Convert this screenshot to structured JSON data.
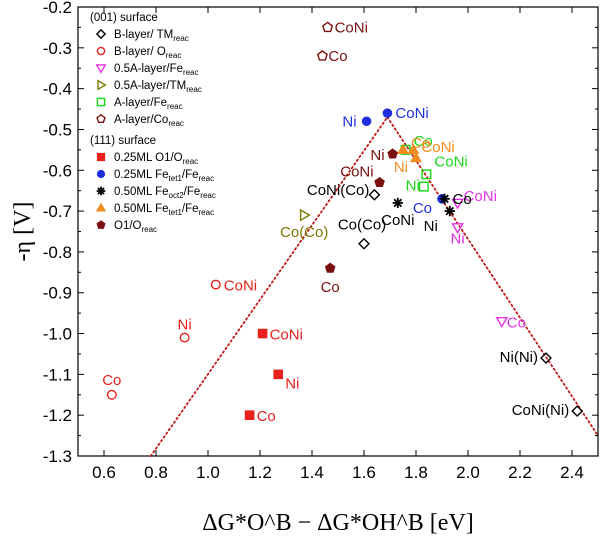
{
  "chart_data": {
    "type": "scatter",
    "xlabel": "ΔG*O^B − ΔG*OH^B [eV]",
    "ylabel": "-η [V]",
    "xlim": [
      0.5,
      2.5
    ],
    "ylim": [
      -1.3,
      -0.2
    ],
    "x_ticks": [
      "0.6",
      "0.8",
      "1.0",
      "1.2",
      "1.4",
      "1.6",
      "1.8",
      "2.0",
      "2.2",
      "2.4"
    ],
    "y_ticks": [
      "-0.2",
      "-0.3",
      "-0.4",
      "-0.5",
      "-0.6",
      "-0.7",
      "-0.8",
      "-0.9",
      "-1.0",
      "-1.1",
      "-1.2",
      "-1.3"
    ],
    "grid": false,
    "legend_position": "top-left",
    "legend_groups": [
      {
        "title": "(001) surface",
        "entries": [
          {
            "main": "B-layer/ TM",
            "sub": "reac",
            "marker": "diamond",
            "color": "#000000",
            "filled": false
          },
          {
            "main": "B-layer/ O",
            "sub": "reac",
            "marker": "circle",
            "color": "#e8211d",
            "filled": false
          },
          {
            "main": "0.5A-layer/Fe",
            "sub": "reac",
            "marker": "triangle-down",
            "color": "#e432e8",
            "filled": false
          },
          {
            "main": "0.5A-layer/TM",
            "sub": "reac",
            "marker": "triangle-right",
            "color": "#7a7a00",
            "filled": false
          },
          {
            "main": "A-layer/Fe",
            "sub": "reac",
            "marker": "square",
            "color": "#18d818",
            "filled": false
          },
          {
            "main": "A-layer/Co",
            "sub": "reac",
            "marker": "pentagon",
            "color": "#7a1010",
            "filled": false
          }
        ]
      },
      {
        "title": "(111) surface",
        "entries": [
          {
            "main": "0.25ML O1/O",
            "sub": "reac",
            "marker": "square",
            "color": "#e8211d",
            "filled": true
          },
          {
            "main": "0.25ML Fe",
            "mid": "tet1",
            "main2": "/Fe",
            "sub": "reac",
            "marker": "circle",
            "color": "#1f2fe0",
            "filled": true
          },
          {
            "main": "0.50ML Fe",
            "mid": "oct2",
            "main2": "/Fe",
            "sub": "reac",
            "marker": "star",
            "color": "#000000",
            "filled": true
          },
          {
            "main": "0.50ML Fe",
            "mid": "tet1",
            "main2": "/Fe",
            "sub": "reac",
            "marker": "triangle-up",
            "color": "#f28c20",
            "filled": true
          },
          {
            "main": "O1/O",
            "sub": "reac",
            "marker": "pentagon",
            "color": "#7a1010",
            "filled": true
          }
        ]
      }
    ],
    "series": [
      {
        "name": "B-layer/ TMreac",
        "marker": "diamond",
        "color": "#000000",
        "filled": false,
        "points": [
          {
            "x": 1.64,
            "y": -0.66,
            "label": "CoNi(Co)"
          },
          {
            "x": 1.6,
            "y": -0.78,
            "label": "Co(Co)"
          },
          {
            "x": 2.3,
            "y": -1.06,
            "label": "Ni(Ni)"
          },
          {
            "x": 2.42,
            "y": -1.19,
            "label": "CoNi(Ni)"
          }
        ]
      },
      {
        "name": "B-layer/ Oreac",
        "marker": "circle",
        "color": "#e8211d",
        "filled": false,
        "points": [
          {
            "x": 1.03,
            "y": -0.88,
            "label": "CoNi"
          },
          {
            "x": 0.91,
            "y": -1.01,
            "label": "Ni"
          },
          {
            "x": 0.63,
            "y": -1.15,
            "label": "Co"
          }
        ]
      },
      {
        "name": "0.5A-layer/Fereac",
        "marker": "triangle-down",
        "color": "#e432e8",
        "filled": false,
        "points": [
          {
            "x": 1.96,
            "y": -0.68,
            "label": "CoNi"
          },
          {
            "x": 1.96,
            "y": -0.74,
            "label": "Ni"
          },
          {
            "x": 2.13,
            "y": -0.97,
            "label": "Co"
          }
        ]
      },
      {
        "name": "0.5A-layer/TMreac",
        "marker": "triangle-right",
        "color": "#7a7a00",
        "filled": false,
        "points": [
          {
            "x": 1.37,
            "y": -0.71,
            "label": "Co(Co)"
          }
        ]
      },
      {
        "name": "A-layer/Fereac",
        "marker": "square",
        "color": "#18d818",
        "filled": false,
        "points": [
          {
            "x": 1.76,
            "y": -0.55,
            "label": "Co"
          },
          {
            "x": 1.84,
            "y": -0.61,
            "label": "CoNi"
          },
          {
            "x": 1.83,
            "y": -0.64,
            "label": "Ni"
          }
        ]
      },
      {
        "name": "A-layer/Coreac",
        "marker": "pentagon",
        "color": "#7a1010",
        "filled": false,
        "points": [
          {
            "x": 1.46,
            "y": -0.25,
            "label": "CoNi"
          },
          {
            "x": 1.44,
            "y": -0.32,
            "label": "Co"
          }
        ]
      },
      {
        "name": "0.25ML O1/Oreac",
        "marker": "square",
        "color": "#e8211d",
        "filled": true,
        "points": [
          {
            "x": 1.21,
            "y": -1.0,
            "label": "CoNi"
          },
          {
            "x": 1.27,
            "y": -1.1,
            "label": "Ni"
          },
          {
            "x": 1.16,
            "y": -1.2,
            "label": "Co"
          }
        ]
      },
      {
        "name": "0.25ML Fetet1/Fereac",
        "marker": "circle",
        "color": "#1f2fe0",
        "filled": true,
        "points": [
          {
            "x": 1.61,
            "y": -0.48,
            "label": "Ni"
          },
          {
            "x": 1.69,
            "y": -0.46,
            "label": "CoNi"
          },
          {
            "x": 1.9,
            "y": -0.67,
            "label": "Co"
          }
        ]
      },
      {
        "name": "0.50ML Feoct2/Fereac",
        "marker": "star",
        "color": "#000000",
        "filled": true,
        "points": [
          {
            "x": 1.73,
            "y": -0.68,
            "label": "CoNi"
          },
          {
            "x": 1.91,
            "y": -0.67,
            "label": "Co"
          },
          {
            "x": 1.93,
            "y": -0.7,
            "label": "Ni"
          }
        ]
      },
      {
        "name": "0.50ML Fetet1/Fereac",
        "marker": "triangle-up",
        "color": "#f28c20",
        "filled": true,
        "points": [
          {
            "x": 1.75,
            "y": -0.55,
            "label": "Co"
          },
          {
            "x": 1.79,
            "y": -0.55,
            "label": "CoNi"
          },
          {
            "x": 1.8,
            "y": -0.57,
            "label": "Ni"
          }
        ]
      },
      {
        "name": "O1/Oreac",
        "marker": "pentagon",
        "color": "#7a1010",
        "filled": true,
        "points": [
          {
            "x": 1.71,
            "y": -0.56,
            "label": "Ni"
          },
          {
            "x": 1.66,
            "y": -0.63,
            "label": "CoNi"
          },
          {
            "x": 1.47,
            "y": -0.84,
            "label": "Co"
          }
        ]
      }
    ],
    "volcano_lines": [
      {
        "x": [
          0.78,
          1.69
        ],
        "y": [
          -1.3,
          -0.47
        ],
        "color": "#c01818",
        "style": "dotted"
      },
      {
        "x": [
          1.69,
          2.5
        ],
        "y": [
          -0.47,
          -1.25
        ],
        "color": "#c01818",
        "style": "dotted"
      }
    ]
  }
}
